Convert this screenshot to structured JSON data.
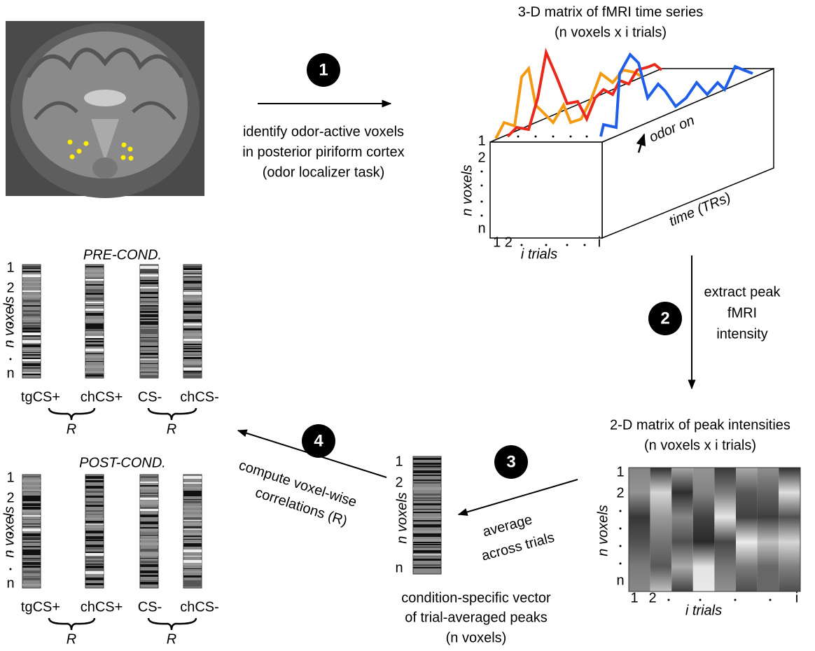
{
  "step1": {
    "number": "1",
    "lines": [
      "identify odor-active voxels",
      "in posterior piriform cortex",
      "(odor localizer task)"
    ]
  },
  "matrix3d": {
    "title": [
      "3-D matrix of fMRI time series",
      "(n voxels x i trials)"
    ],
    "rows": [
      "1",
      "2",
      "n"
    ],
    "rows_label": "n voxels",
    "cols": [
      "1 2",
      "i"
    ],
    "cols_label": "i trials",
    "time_label": "time (TRs)",
    "onset_label": "odor on"
  },
  "step2": {
    "number": "2",
    "lines": [
      "extract peak",
      "fMRI",
      "intensity"
    ]
  },
  "matrix2d": {
    "title": [
      "2-D matrix of peak intensities",
      "(n voxels x i trials)"
    ],
    "rows": [
      "1",
      "2",
      "n"
    ],
    "rows_label": "n voxels",
    "cols": [
      "1",
      "2",
      "i"
    ],
    "cols_label": "i trials"
  },
  "step3": {
    "number": "3",
    "lines": [
      "average",
      "across trials"
    ]
  },
  "vector": {
    "rows": [
      "1",
      "2",
      "n"
    ],
    "rows_label": "n voxels",
    "caption": [
      "condition-specific vector",
      "of trial-averaged peaks",
      "(n voxels)"
    ]
  },
  "step4": {
    "number": "4",
    "lines": [
      "compute voxel-wise",
      "correlations (R)"
    ]
  },
  "pre": {
    "title": "PRE-COND.",
    "rows": [
      "1",
      "2",
      "n"
    ],
    "rows_label": "n voxels",
    "conditions": [
      "tgCS+",
      "chCS+",
      "CS-",
      "chCS-"
    ],
    "correlation_labels": [
      "R",
      "R"
    ]
  },
  "post": {
    "title": "POST-COND.",
    "rows": [
      "1",
      "2",
      "n"
    ],
    "rows_label": "n voxels",
    "conditions": [
      "tgCS+",
      "chCS+",
      "CS-",
      "chCS-"
    ],
    "correlation_labels": [
      "R",
      "R"
    ]
  }
}
